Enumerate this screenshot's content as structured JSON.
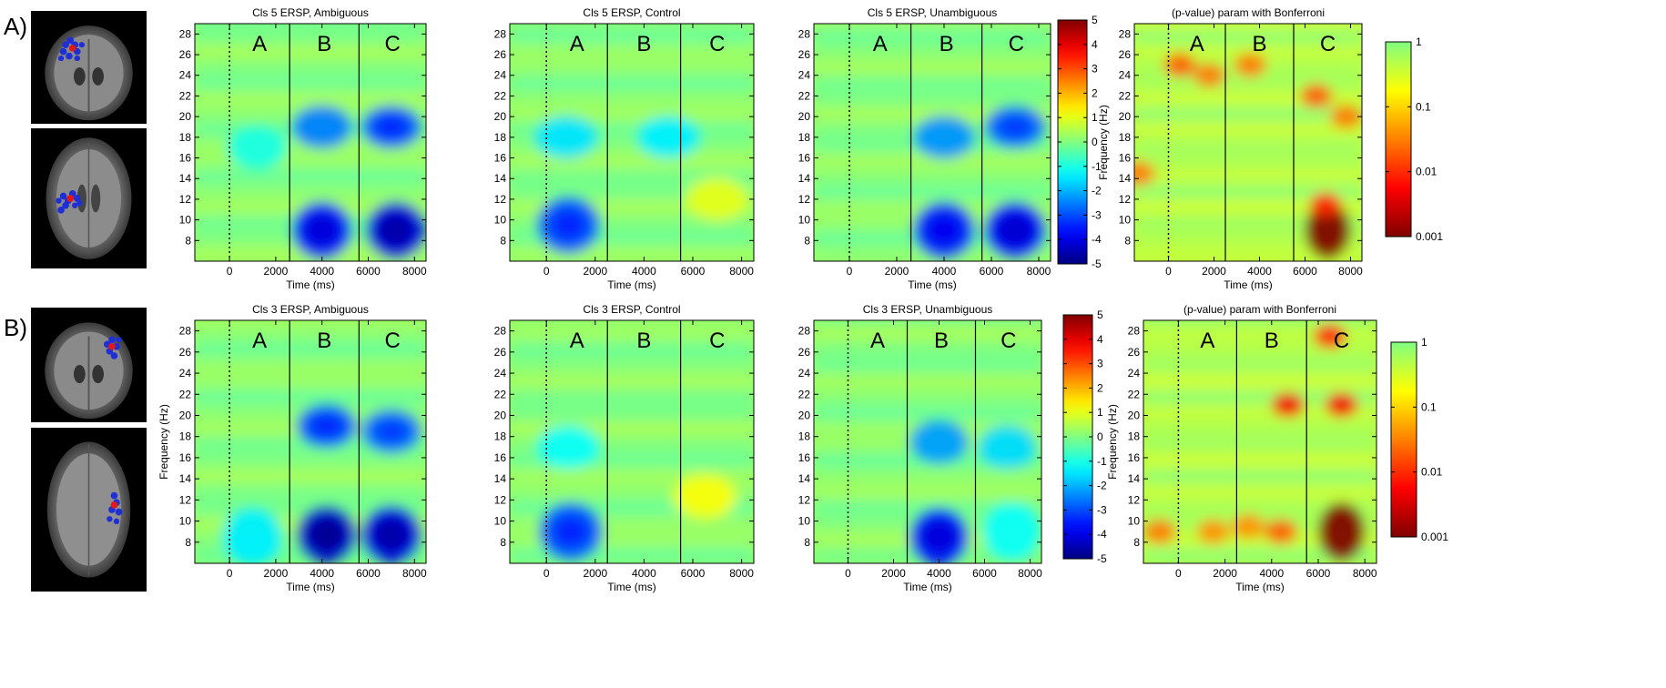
{
  "rows": [
    {
      "label": "A)",
      "brain_views": [
        {
          "name": "coronal-view"
        },
        {
          "name": "axial-view"
        }
      ],
      "dipole_colors": {
        "cluster": "#1f2fd6",
        "centroid": "#e01818"
      }
    },
    {
      "label": "B)",
      "brain_views": [
        {
          "name": "coronal-view"
        },
        {
          "name": "axial-view"
        }
      ],
      "dipole_colors": {
        "cluster": "#1f2fd6",
        "centroid": "#e01818"
      }
    }
  ],
  "colormap": "jet",
  "chart_data": [
    {
      "type": "heatmap",
      "row": "A",
      "title": "Cls 5 ERSP, Ambiguous",
      "xlabel": "Time (ms)",
      "ylabel": "",
      "xlim": [
        -1500,
        8500
      ],
      "ylim": [
        6,
        29
      ],
      "xticks": [
        0,
        2000,
        4000,
        6000,
        8000
      ],
      "yticks": [
        8,
        10,
        12,
        14,
        16,
        18,
        20,
        22,
        24,
        26,
        28
      ],
      "color_range": [
        -5,
        5
      ],
      "stimulus_onset_ms": 0,
      "segment_boundaries_ms": [
        2600,
        5600
      ],
      "segment_labels": [
        "A",
        "B",
        "C"
      ],
      "blobs": [
        {
          "t_ms": 4000,
          "f_hz": 9,
          "value": -3.5
        },
        {
          "t_ms": 7200,
          "f_hz": 9,
          "value": -4.0
        },
        {
          "t_ms": 4000,
          "f_hz": 19,
          "value": -2.5
        },
        {
          "t_ms": 7000,
          "f_hz": 19,
          "value": -2.8
        },
        {
          "t_ms": 1200,
          "f_hz": 17,
          "value": -1.0
        }
      ]
    },
    {
      "type": "heatmap",
      "row": "A",
      "title": "Cls 5 ERSP, Control",
      "xlabel": "Time (ms)",
      "ylabel": "",
      "xlim": [
        -1500,
        8500
      ],
      "ylim": [
        6,
        29
      ],
      "xticks": [
        0,
        2000,
        4000,
        6000,
        8000
      ],
      "yticks": [
        8,
        10,
        12,
        14,
        16,
        18,
        20,
        22,
        24,
        26,
        28
      ],
      "color_range": [
        -5,
        5
      ],
      "stimulus_onset_ms": 0,
      "segment_boundaries_ms": [
        2500,
        5500
      ],
      "segment_labels": [
        "A",
        "B",
        "C"
      ],
      "blobs": [
        {
          "t_ms": 900,
          "f_hz": 9.5,
          "value": -2.8
        },
        {
          "t_ms": 800,
          "f_hz": 18,
          "value": -1.5
        },
        {
          "t_ms": 5000,
          "f_hz": 18,
          "value": -1.4
        },
        {
          "t_ms": 7000,
          "f_hz": 12,
          "value": 1.0
        }
      ]
    },
    {
      "type": "heatmap",
      "row": "A",
      "title": "Cls 5 ERSP, Unambiguous",
      "xlabel": "Time (ms)",
      "ylabel": "",
      "xlim": [
        -1500,
        8500
      ],
      "ylim": [
        6,
        29
      ],
      "xticks": [
        0,
        2000,
        4000,
        6000,
        8000
      ],
      "yticks": [
        8,
        10,
        12,
        14,
        16,
        18,
        20,
        22,
        24,
        26,
        28
      ],
      "color_range": [
        -5,
        5
      ],
      "stimulus_onset_ms": 0,
      "segment_boundaries_ms": [
        2600,
        5600
      ],
      "segment_labels": [
        "A",
        "B",
        "C"
      ],
      "blobs": [
        {
          "t_ms": 4000,
          "f_hz": 9,
          "value": -3.3
        },
        {
          "t_ms": 7000,
          "f_hz": 9,
          "value": -3.6
        },
        {
          "t_ms": 4000,
          "f_hz": 18,
          "value": -2.3
        },
        {
          "t_ms": 7000,
          "f_hz": 19,
          "value": -2.6
        }
      ]
    },
    {
      "type": "heatmap",
      "row": "A",
      "title": "(p-value) param with Bonferroni",
      "xlabel": "Time (ms)",
      "ylabel": "Frequency (Hz)",
      "xlim": [
        -1500,
        8500
      ],
      "ylim": [
        6,
        29
      ],
      "xticks": [
        0,
        2000,
        4000,
        6000,
        8000
      ],
      "yticks": [
        8,
        10,
        12,
        14,
        16,
        18,
        20,
        22,
        24,
        26,
        28
      ],
      "colorbar_scale": "log",
      "colorbar_range": [
        0.001,
        1
      ],
      "colorbar_ticks": [
        "1",
        "0.1",
        "0.01",
        "0.001"
      ],
      "stimulus_onset_ms": 0,
      "segment_boundaries_ms": [
        2500,
        5500
      ],
      "segment_labels": [
        "A",
        "B",
        "C"
      ],
      "significant_regions": [
        {
          "t_ms": 7000,
          "f_hz": 9,
          "p": 0.001
        },
        {
          "t_ms": 6900,
          "f_hz": 11.5,
          "p": 0.01
        },
        {
          "t_ms": 6500,
          "f_hz": 22,
          "p": 0.02
        },
        {
          "t_ms": 7800,
          "f_hz": 20,
          "p": 0.03
        },
        {
          "t_ms": 500,
          "f_hz": 25,
          "p": 0.02
        },
        {
          "t_ms": 1800,
          "f_hz": 24,
          "p": 0.03
        },
        {
          "t_ms": 3600,
          "f_hz": 25,
          "p": 0.03
        },
        {
          "t_ms": -1300,
          "f_hz": 14.5,
          "p": 0.03
        }
      ]
    },
    {
      "type": "heatmap",
      "row": "B",
      "title": "Cls 3 ERSP, Ambiguous",
      "xlabel": "Time (ms)",
      "ylabel": "Frequency (Hz)",
      "xlim": [
        -1500,
        8500
      ],
      "ylim": [
        6,
        29
      ],
      "xticks": [
        0,
        2000,
        4000,
        6000,
        8000
      ],
      "yticks": [
        8,
        10,
        12,
        14,
        16,
        18,
        20,
        22,
        24,
        26,
        28
      ],
      "color_range": [
        -5,
        5
      ],
      "stimulus_onset_ms": 0,
      "segment_boundaries_ms": [
        2600,
        5600
      ],
      "segment_labels": [
        "A",
        "B",
        "C"
      ],
      "blobs": [
        {
          "t_ms": 4200,
          "f_hz": 8.7,
          "value": -4.2
        },
        {
          "t_ms": 7000,
          "f_hz": 8.7,
          "value": -4.0
        },
        {
          "t_ms": 4200,
          "f_hz": 19,
          "value": -2.8
        },
        {
          "t_ms": 7000,
          "f_hz": 18.5,
          "value": -2.6
        },
        {
          "t_ms": 1000,
          "f_hz": 8.5,
          "value": -1.4
        }
      ]
    },
    {
      "type": "heatmap",
      "row": "B",
      "title": "Cls 3 ERSP, Control",
      "xlabel": "Time (ms)",
      "ylabel": "",
      "xlim": [
        -1500,
        8500
      ],
      "ylim": [
        6,
        29
      ],
      "xticks": [
        0,
        2000,
        4000,
        6000,
        8000
      ],
      "yticks": [
        8,
        10,
        12,
        14,
        16,
        18,
        20,
        22,
        24,
        26,
        28
      ],
      "color_range": [
        -5,
        5
      ],
      "stimulus_onset_ms": 0,
      "segment_boundaries_ms": [
        2500,
        5500
      ],
      "segment_labels": [
        "A",
        "B",
        "C"
      ],
      "blobs": [
        {
          "t_ms": 1000,
          "f_hz": 9,
          "value": -2.8
        },
        {
          "t_ms": 900,
          "f_hz": 17,
          "value": -1.2
        },
        {
          "t_ms": 6500,
          "f_hz": 12.3,
          "value": 1.2
        }
      ]
    },
    {
      "type": "heatmap",
      "row": "B",
      "title": "Cls 3 ERSP, Unambiguous",
      "xlabel": "Time (ms)",
      "ylabel": "",
      "xlim": [
        -1500,
        8500
      ],
      "ylim": [
        6,
        29
      ],
      "xticks": [
        0,
        2000,
        4000,
        6000,
        8000
      ],
      "yticks": [
        8,
        10,
        12,
        14,
        16,
        18,
        20,
        22,
        24,
        26,
        28
      ],
      "color_range": [
        -5,
        5
      ],
      "stimulus_onset_ms": 0,
      "segment_boundaries_ms": [
        2600,
        5600
      ],
      "segment_labels": [
        "A",
        "B",
        "C"
      ],
      "blobs": [
        {
          "t_ms": 4000,
          "f_hz": 8.5,
          "value": -3.5
        },
        {
          "t_ms": 4000,
          "f_hz": 17.5,
          "value": -2.2
        },
        {
          "t_ms": 7000,
          "f_hz": 17,
          "value": -1.6
        },
        {
          "t_ms": 7200,
          "f_hz": 9,
          "value": -1.2
        }
      ]
    },
    {
      "type": "heatmap",
      "row": "B",
      "title": "(p-value) param with Bonferroni",
      "xlabel": "Time (ms)",
      "ylabel": "Frequency (Hz)",
      "xlim": [
        -1500,
        8500
      ],
      "ylim": [
        6,
        29
      ],
      "xticks": [
        0,
        2000,
        4000,
        6000,
        8000
      ],
      "yticks": [
        8,
        10,
        12,
        14,
        16,
        18,
        20,
        22,
        24,
        26,
        28
      ],
      "colorbar_scale": "log",
      "colorbar_range": [
        0.001,
        1
      ],
      "colorbar_ticks": [
        "1",
        "0.1",
        "0.01",
        "0.001"
      ],
      "stimulus_onset_ms": 0,
      "segment_boundaries_ms": [
        2500,
        5500
      ],
      "segment_labels": [
        "A",
        "B",
        "C"
      ],
      "significant_regions": [
        {
          "t_ms": 7000,
          "f_hz": 9,
          "p": 0.001
        },
        {
          "t_ms": 4700,
          "f_hz": 21,
          "p": 0.005
        },
        {
          "t_ms": 7000,
          "f_hz": 21,
          "p": 0.005
        },
        {
          "t_ms": 4400,
          "f_hz": 9,
          "p": 0.02
        },
        {
          "t_ms": -800,
          "f_hz": 9,
          "p": 0.03
        },
        {
          "t_ms": 1500,
          "f_hz": 9,
          "p": 0.04
        },
        {
          "t_ms": 3000,
          "f_hz": 9.5,
          "p": 0.04
        },
        {
          "t_ms": 6500,
          "f_hz": 27.5,
          "p": 0.01
        }
      ]
    }
  ],
  "colorbars": [
    {
      "row": "A",
      "type": "ersp",
      "ticks": [
        "5",
        "4",
        "3",
        "2",
        "1",
        "0",
        "-1",
        "-2",
        "-3",
        "-4",
        "-5"
      ]
    },
    {
      "row": "A",
      "type": "pvalue",
      "ticks": [
        "1",
        "0.1",
        "0.01",
        "0.001"
      ]
    },
    {
      "row": "B",
      "type": "ersp",
      "ticks": [
        "5",
        "4",
        "3",
        "2",
        "1",
        "0",
        "-1",
        "-2",
        "-3",
        "-4",
        "-5"
      ]
    },
    {
      "row": "B",
      "type": "pvalue",
      "ticks": [
        "1",
        "0.1",
        "0.01",
        "0.001"
      ]
    }
  ]
}
